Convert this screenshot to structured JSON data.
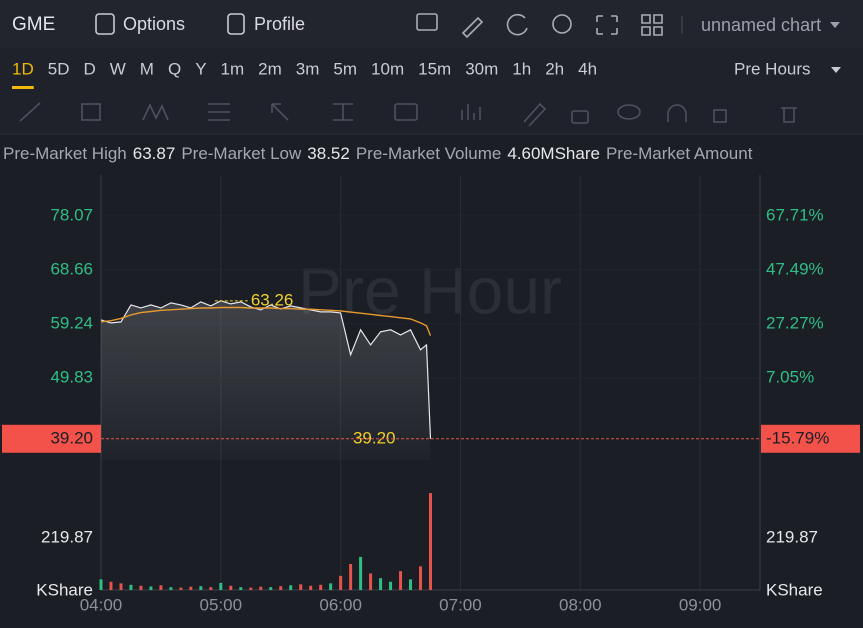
{
  "header": {
    "symbol": "GME",
    "options": "Options",
    "profile": "Profile",
    "chart_name": "unnamed chart"
  },
  "timeframes": [
    "1D",
    "5D",
    "D",
    "W",
    "M",
    "Q",
    "Y",
    "1m",
    "2m",
    "3m",
    "5m",
    "10m",
    "15m",
    "30m",
    "1h",
    "2h",
    "4h"
  ],
  "active_timeframe": "1D",
  "session": "Pre Hours",
  "stats": [
    {
      "label": "Pre-Market High",
      "value": 63.87
    },
    {
      "label": "Pre-Market Low",
      "value": 38.52
    },
    {
      "label": "Pre-Market Volume",
      "value": "4.60MShare"
    },
    {
      "label": "Pre-Market Amount"
    }
  ],
  "chart_data": [
    {
      "type": "line",
      "watermark": "Pre Hour",
      "x": [
        "04:00",
        "04:05",
        "04:10",
        "04:15",
        "04:20",
        "04:25",
        "04:30",
        "04:35",
        "04:40",
        "04:45",
        "04:50",
        "04:55",
        "05:00",
        "05:05",
        "05:10",
        "05:15",
        "05:20",
        "05:25",
        "05:30",
        "05:35",
        "05:40",
        "05:45",
        "05:50",
        "05:55",
        "06:00",
        "06:05",
        "06:10",
        "06:15",
        "06:20",
        "06:25",
        "06:30",
        "06:35",
        "06:40",
        "06:43",
        "06:45"
      ],
      "series": [
        {
          "color": "#e6e8ec",
          "values": [
            59.94,
            59.41,
            59.59,
            62.55,
            62.03,
            62.55,
            62.03,
            62.9,
            62.55,
            62.03,
            63.07,
            62.38,
            63.26,
            62.72,
            63.07,
            62.2,
            61.68,
            62.55,
            61.85,
            62.38,
            62.03,
            61.68,
            61.33,
            61.33,
            61.16,
            53.84,
            58.2,
            55.58,
            57.85,
            58.2,
            57.32,
            58.2,
            54.71,
            55.58,
            39.2
          ]
        },
        {
          "color": "#e69a2e",
          "values": [
            59.6,
            59.8,
            60.2,
            60.8,
            61.2,
            61.4,
            61.6,
            61.7,
            61.8,
            61.9,
            62.0,
            62.0,
            62.1,
            62.1,
            62.1,
            62.0,
            62.0,
            62.0,
            61.9,
            61.9,
            61.8,
            61.8,
            61.7,
            61.6,
            61.5,
            61.3,
            61.1,
            60.9,
            60.7,
            60.5,
            60.3,
            60.1,
            59.4,
            58.9,
            57.2
          ]
        }
      ],
      "xlim": [
        "04:00",
        "09:30"
      ],
      "ylim": [
        35.5,
        85.2
      ],
      "yticks": [
        78.07,
        68.66,
        59.24,
        49.83
      ],
      "y2lim": [
        -23.74,
        83.03
      ],
      "y2ticks": [
        {
          "value": 67.71,
          "label": "67.71%"
        },
        {
          "value": 47.49,
          "label": "47.49%"
        },
        {
          "value": 27.27,
          "label": "27.27%"
        },
        {
          "value": 7.05,
          "label": "7.05%"
        }
      ],
      "high_annotation": {
        "value": 63.26,
        "x": "05:00"
      },
      "low_annotation": {
        "value": 39.2,
        "label": "39.20",
        "x": "06:45"
      },
      "last_price": {
        "value": 39.2,
        "label": "39.20"
      },
      "last_change": {
        "value": -15.79,
        "label": "-15.79%"
      },
      "grid": true
    },
    {
      "type": "bar",
      "x": [
        "04:00",
        "04:05",
        "04:10",
        "04:15",
        "04:20",
        "04:25",
        "04:30",
        "04:35",
        "04:40",
        "04:45",
        "04:50",
        "04:55",
        "05:00",
        "05:05",
        "05:10",
        "05:15",
        "05:20",
        "05:25",
        "05:30",
        "05:35",
        "05:40",
        "05:45",
        "05:50",
        "05:55",
        "06:00",
        "06:05",
        "06:10",
        "06:15",
        "06:20",
        "06:25",
        "06:30",
        "06:35",
        "06:40",
        "06:45"
      ],
      "values": [
        45,
        35,
        28,
        22,
        18,
        15,
        20,
        12,
        10,
        14,
        16,
        12,
        30,
        18,
        12,
        10,
        14,
        12,
        16,
        20,
        24,
        18,
        22,
        28,
        60,
        110,
        140,
        70,
        50,
        35,
        80,
        45,
        100,
        410
      ],
      "colors": [
        "#2fbf85",
        "#e5534b",
        "#e5534b",
        "#2fbf85",
        "#e5534b",
        "#2fbf85",
        "#e5534b",
        "#2fbf85",
        "#e5534b",
        "#e5534b",
        "#2fbf85",
        "#e5534b",
        "#2fbf85",
        "#e5534b",
        "#2fbf85",
        "#e5534b",
        "#e5534b",
        "#2fbf85",
        "#e5534b",
        "#2fbf85",
        "#e5534b",
        "#e5534b",
        "#e5534b",
        "#2fbf85",
        "#e5534b",
        "#e5534b",
        "#2fbf85",
        "#e5534b",
        "#2fbf85",
        "#2fbf85",
        "#e5534b",
        "#2fbf85",
        "#e5534b",
        "#e5534b"
      ],
      "xlim": [
        "04:00",
        "09:30"
      ],
      "ylim": [
        0,
        550
      ],
      "yticks": [
        219.87
      ],
      "unit": "KShare",
      "xticks": [
        "04:00",
        "05:00",
        "06:00",
        "07:00",
        "08:00",
        "09:00"
      ]
    }
  ]
}
